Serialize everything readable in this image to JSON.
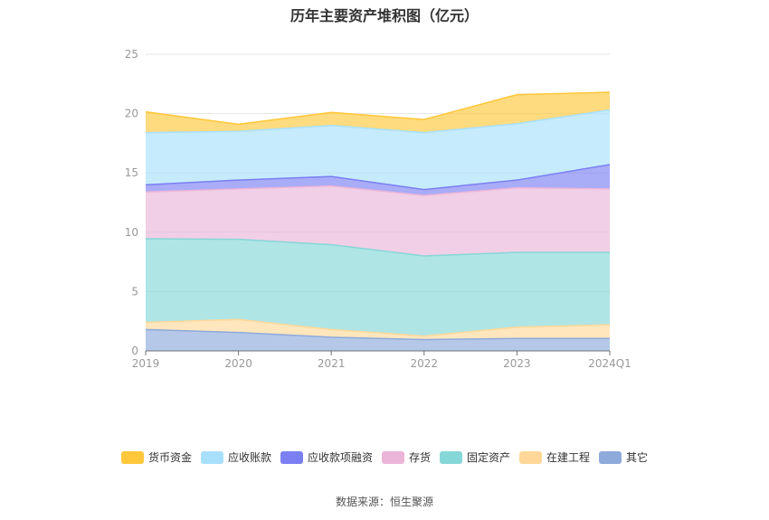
{
  "chart_data": {
    "type": "area",
    "stacked": true,
    "title": "历年主要资产堆积图（亿元）",
    "categories": [
      "2019",
      "2020",
      "2021",
      "2022",
      "2023",
      "2024Q1"
    ],
    "ylim": [
      0,
      25
    ],
    "yticks": [
      "0",
      "5",
      "10",
      "15",
      "20",
      "25"
    ],
    "grid": true,
    "legend_position": "bottom",
    "series": [
      {
        "name": "其它",
        "color": "#8eaadb",
        "values": [
          1.8,
          1.55,
          1.15,
          0.95,
          1.05,
          1.05
        ]
      },
      {
        "name": "在建工程",
        "color": "#ffd899",
        "values": [
          0.6,
          1.1,
          0.65,
          0.3,
          0.95,
          1.15
        ]
      },
      {
        "name": "固定资产",
        "color": "#86d7d7",
        "values": [
          7.05,
          6.75,
          7.15,
          6.75,
          6.3,
          6.1
        ]
      },
      {
        "name": "存货",
        "color": "#eab5d8",
        "values": [
          3.95,
          4.25,
          4.95,
          5.1,
          5.45,
          5.35
        ]
      },
      {
        "name": "应收款项融资",
        "color": "#7b7ff2",
        "values": [
          0.6,
          0.75,
          0.8,
          0.5,
          0.65,
          2.05
        ]
      },
      {
        "name": "应收账款",
        "color": "#a8e0fb",
        "values": [
          4.4,
          4.1,
          4.3,
          4.8,
          4.75,
          4.6
        ]
      },
      {
        "name": "货币资金",
        "color": "#ffc73a",
        "values": [
          1.75,
          0.6,
          1.1,
          1.1,
          2.45,
          1.5
        ]
      }
    ]
  },
  "legend_order": [
    {
      "name": "货币资金",
      "color": "#ffc73a"
    },
    {
      "name": "应收账款",
      "color": "#a8e0fb"
    },
    {
      "name": "应收款项融资",
      "color": "#7b7ff2"
    },
    {
      "name": "存货",
      "color": "#eab5d8"
    },
    {
      "name": "固定资产",
      "color": "#86d7d7"
    },
    {
      "name": "在建工程",
      "color": "#ffd899"
    },
    {
      "name": "其它",
      "color": "#8eaadb"
    }
  ],
  "source_label": "数据来源：恒生聚源"
}
